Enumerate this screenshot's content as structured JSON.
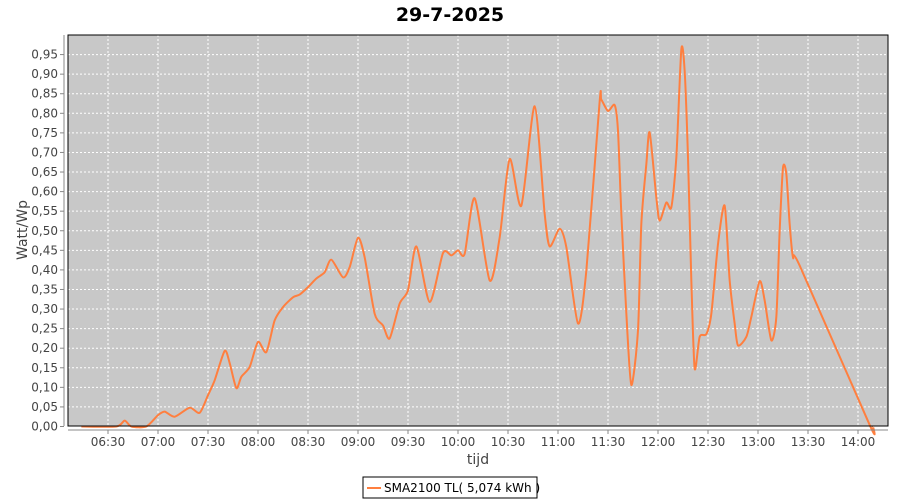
{
  "chart_data": {
    "type": "line",
    "title": "29-7-2025",
    "xlabel": "tijd",
    "ylabel": "Watt/Wp",
    "xlim": [
      "06:06",
      "14:18"
    ],
    "ylim": [
      0,
      1.0
    ],
    "x_ticks": [
      "06:30",
      "07:00",
      "07:30",
      "08:00",
      "08:30",
      "09:00",
      "09:30",
      "10:00",
      "10:30",
      "11:00",
      "11:30",
      "12:00",
      "12:30",
      "13:00",
      "13:30",
      "14:00"
    ],
    "y_ticks": [
      0,
      0.05,
      0.1,
      0.15,
      0.2,
      0.25,
      0.3,
      0.35,
      0.4,
      0.45,
      0.5,
      0.55,
      0.6,
      0.65,
      0.7,
      0.75,
      0.8,
      0.85,
      0.9,
      0.95
    ],
    "y_tick_labels": [
      "0,00",
      "0,05",
      "0,10",
      "0,15",
      "0,20",
      "0,25",
      "0,30",
      "0,35",
      "0,40",
      "0,45",
      "0,50",
      "0,55",
      "0,60",
      "0,65",
      "0,70",
      "0,75",
      "0,80",
      "0,85",
      "0,90",
      "0,95"
    ],
    "grid": true,
    "legend_position": "bottom",
    "colors": {
      "plot_background": "#c8c8c8",
      "grid": "#ffffff",
      "series": "#ff7f3f"
    },
    "series": [
      {
        "name": "SMA2100 TL( 5,074 kWh )",
        "x": [
          "06:14",
          "06:35",
          "06:40",
          "06:44",
          "06:53",
          "07:00",
          "07:04",
          "07:10",
          "07:19",
          "07:25",
          "07:30",
          "07:34",
          "07:40",
          "07:43",
          "07:47",
          "07:50",
          "07:55",
          "08:00",
          "08:05",
          "08:10",
          "08:15",
          "08:21",
          "08:25",
          "08:30",
          "08:35",
          "08:40",
          "08:44",
          "08:51",
          "08:55",
          "09:00",
          "09:04",
          "09:10",
          "09:15",
          "09:19",
          "09:25",
          "09:30",
          "09:35",
          "09:43",
          "09:51",
          "09:56",
          "10:00",
          "10:04",
          "10:10",
          "10:19",
          "10:25",
          "10:31",
          "10:38",
          "10:46",
          "10:52",
          "10:55",
          "11:01",
          "11:05",
          "11:12",
          "11:17",
          "11:25",
          "11:26",
          "11:30",
          "11:34",
          "11:36",
          "11:38",
          "11:41",
          "11:44",
          "11:48",
          "11:50",
          "11:53",
          "11:55",
          "11:59",
          "12:01",
          "12:05",
          "12:08",
          "12:11",
          "12:14",
          "12:16",
          "12:18",
          "12:20",
          "12:22",
          "12:25",
          "12:29",
          "12:32",
          "12:36",
          "12:40",
          "12:43",
          "12:46",
          "12:48",
          "12:53",
          "12:56",
          "13:01",
          "13:04",
          "13:08",
          "13:11",
          "13:13",
          "13:15",
          "13:17",
          "13:19",
          "13:21",
          "13:25",
          "14:07",
          "14:09"
        ],
        "y": [
          0,
          0,
          0.015,
          0,
          0,
          0.029,
          0.038,
          0.025,
          0.048,
          0.035,
          0.08,
          0.118,
          0.193,
          0.162,
          0.098,
          0.127,
          0.152,
          0.216,
          0.19,
          0.271,
          0.305,
          0.33,
          0.337,
          0.356,
          0.378,
          0.394,
          0.426,
          0.381,
          0.407,
          0.482,
          0.432,
          0.288,
          0.258,
          0.225,
          0.314,
          0.348,
          0.46,
          0.318,
          0.443,
          0.437,
          0.45,
          0.441,
          0.583,
          0.373,
          0.483,
          0.683,
          0.564,
          0.818,
          0.543,
          0.46,
          0.505,
          0.458,
          0.263,
          0.398,
          0.831,
          0.835,
          0.806,
          0.821,
          0.755,
          0.543,
          0.289,
          0.106,
          0.246,
          0.518,
          0.67,
          0.751,
          0.585,
          0.526,
          0.572,
          0.56,
          0.687,
          0.963,
          0.908,
          0.687,
          0.373,
          0.148,
          0.229,
          0.236,
          0.288,
          0.466,
          0.564,
          0.373,
          0.263,
          0.207,
          0.229,
          0.28,
          0.371,
          0.322,
          0.22,
          0.28,
          0.5,
          0.661,
          0.645,
          0.517,
          0.432,
          0.411,
          0.004,
          0
        ]
      }
    ]
  }
}
